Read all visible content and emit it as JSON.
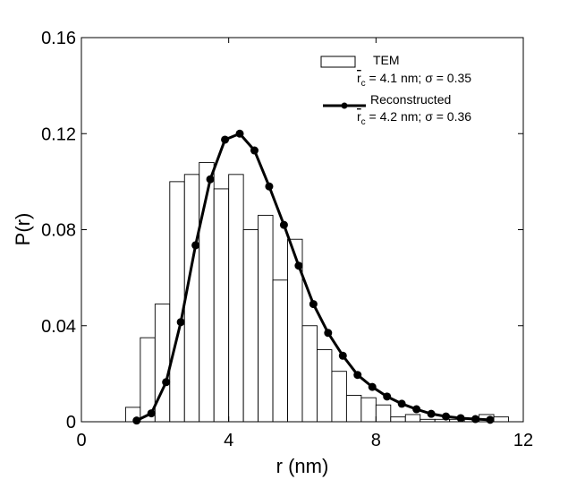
{
  "chart_data": {
    "type": "bar+line",
    "xlabel": "r (nm)",
    "ylabel": "P(r)",
    "xlim": [
      0,
      12
    ],
    "ylim": [
      0,
      0.16
    ],
    "x_ticks": [
      0,
      4,
      8,
      12
    ],
    "x_tick_labels": [
      "0",
      "4",
      "8",
      "12"
    ],
    "y_ticks": [
      0,
      0.04,
      0.08,
      0.12,
      0.16
    ],
    "y_tick_labels": [
      "0",
      "0.04",
      "0.08",
      "0.12",
      "0.16"
    ],
    "legend_position": "top-right",
    "histogram": {
      "name": "TEM",
      "legend_label": "TEM",
      "legend_stats_prefix": "r",
      "legend_stats_sub": "c",
      "legend_stats_suffix": " = 4.1 nm; σ = 0.35",
      "bin_width": 0.4,
      "bin_edges_start": [
        1.2,
        1.6,
        2.0,
        2.4,
        2.8,
        3.2,
        3.6,
        4.0,
        4.4,
        4.8,
        5.2,
        5.6,
        6.0,
        6.4,
        6.8,
        7.2,
        7.6,
        8.0,
        8.4,
        8.8,
        9.2,
        9.6,
        10.0,
        10.4,
        10.8,
        11.2
      ],
      "values": [
        0.006,
        0.035,
        0.049,
        0.1,
        0.103,
        0.108,
        0.097,
        0.103,
        0.08,
        0.086,
        0.059,
        0.076,
        0.04,
        0.03,
        0.021,
        0.011,
        0.01,
        0.007,
        0.002,
        0.003,
        0.001,
        0.001,
        0.001,
        0.001,
        0.003,
        0.002
      ]
    },
    "line": {
      "name": "Reconstructed",
      "legend_label": "Reconstructed",
      "legend_stats_prefix": "r",
      "legend_stats_sub": "c",
      "legend_stats_suffix": " = 4.2 nm; σ = 0.36",
      "x": [
        1.5,
        1.9,
        2.3,
        2.7,
        3.1,
        3.5,
        3.9,
        4.3,
        4.7,
        5.1,
        5.5,
        5.9,
        6.3,
        6.7,
        7.1,
        7.5,
        7.9,
        8.3,
        8.7,
        9.1,
        9.5,
        9.9,
        10.3,
        10.7,
        11.1
      ],
      "y": [
        0.0005,
        0.0035,
        0.0165,
        0.0415,
        0.0735,
        0.101,
        0.1175,
        0.12,
        0.113,
        0.098,
        0.082,
        0.065,
        0.049,
        0.037,
        0.0275,
        0.0195,
        0.0145,
        0.0105,
        0.0075,
        0.0052,
        0.0033,
        0.0022,
        0.0015,
        0.0011,
        0.0008
      ]
    }
  }
}
